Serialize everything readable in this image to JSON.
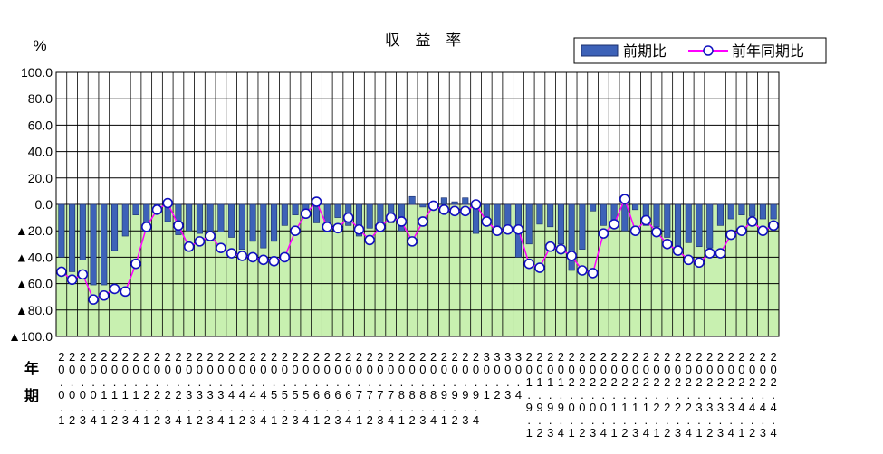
{
  "chart_data": {
    "type": "bar+line",
    "title": "収 益 率",
    "ylabel": "%",
    "xlabel": "年\n期",
    "ylim": [
      -100,
      100
    ],
    "yticks": [
      100.0,
      80.0,
      60.0,
      40.0,
      20.0,
      0.0,
      -20.0,
      -40.0,
      -60.0,
      -80.0,
      -100.0
    ],
    "ytick_labels": [
      "100.0",
      "80.0",
      "60.0",
      "40.0",
      "20.0",
      "0.0",
      "▲20.0",
      "▲40.0",
      "▲60.0",
      "▲80.0",
      "▲100.0"
    ],
    "grid": true,
    "legend_position": "top-right",
    "colors": {
      "bar": "#3d62b8",
      "line": "#ff00ff",
      "marker_edge": "#1010c0",
      "marker_fill": "#ffffff",
      "negative_area": "#c8f0b0"
    },
    "x_labels": [
      [
        "2",
        "0",
        "0",
        "1"
      ],
      [
        "2",
        "0",
        "0",
        "2"
      ],
      [
        "2",
        "0",
        "0",
        "3"
      ],
      [
        "2",
        "0",
        "0",
        "4"
      ],
      [
        "2",
        "0",
        "1",
        "1"
      ],
      [
        "2",
        "0",
        "1",
        "2"
      ],
      [
        "2",
        "0",
        "1",
        "3"
      ],
      [
        "2",
        "0",
        "1",
        "4"
      ],
      [
        "2",
        "0",
        "2",
        "1"
      ],
      [
        "2",
        "0",
        "2",
        "2"
      ],
      [
        "2",
        "0",
        "2",
        "3"
      ],
      [
        "2",
        "0",
        "2",
        "4"
      ],
      [
        "2",
        "0",
        "3",
        "1"
      ],
      [
        "2",
        "0",
        "3",
        "2"
      ],
      [
        "2",
        "0",
        "3",
        "3"
      ],
      [
        "2",
        "0",
        "3",
        "4"
      ],
      [
        "2",
        "0",
        "4",
        "1"
      ],
      [
        "2",
        "0",
        "4",
        "2"
      ],
      [
        "2",
        "0",
        "4",
        "3"
      ],
      [
        "2",
        "0",
        "4",
        "4"
      ],
      [
        "2",
        "0",
        "5",
        "1"
      ],
      [
        "2",
        "0",
        "5",
        "2"
      ],
      [
        "2",
        "0",
        "5",
        "3"
      ],
      [
        "2",
        "0",
        "5",
        "4"
      ],
      [
        "2",
        "0",
        "6",
        "1"
      ],
      [
        "2",
        "0",
        "6",
        "2"
      ],
      [
        "2",
        "0",
        "6",
        "3"
      ],
      [
        "2",
        "0",
        "6",
        "4"
      ],
      [
        "2",
        "0",
        "7",
        "1"
      ],
      [
        "2",
        "0",
        "7",
        "2"
      ],
      [
        "2",
        "0",
        "7",
        "3"
      ],
      [
        "2",
        "0",
        "7",
        "4"
      ],
      [
        "2",
        "0",
        "8",
        "1"
      ],
      [
        "2",
        "0",
        "8",
        "2"
      ],
      [
        "2",
        "0",
        "8",
        "3"
      ],
      [
        "2",
        "0",
        "8",
        "4"
      ],
      [
        "2",
        "0",
        "9",
        "1"
      ],
      [
        "2",
        "0",
        "9",
        "2"
      ],
      [
        "2",
        "0",
        "9",
        "3"
      ],
      [
        "2",
        "0",
        "9",
        "4"
      ],
      [
        "3",
        "0",
        "1"
      ],
      [
        "3",
        "0",
        "2"
      ],
      [
        "3",
        "0",
        "3"
      ],
      [
        "3",
        "0",
        "4"
      ],
      [
        "2",
        "0",
        "1",
        "9",
        "1"
      ],
      [
        "2",
        "0",
        "1",
        "9",
        "2"
      ],
      [
        "2",
        "0",
        "1",
        "9",
        "3"
      ],
      [
        "2",
        "0",
        "1",
        "9",
        "4"
      ],
      [
        "2",
        "0",
        "2",
        "0",
        "1"
      ],
      [
        "2",
        "0",
        "2",
        "0",
        "2"
      ],
      [
        "2",
        "0",
        "2",
        "0",
        "3"
      ],
      [
        "2",
        "0",
        "2",
        "0",
        "4"
      ],
      [
        "2",
        "0",
        "2",
        "1",
        "1"
      ],
      [
        "2",
        "0",
        "2",
        "1",
        "2"
      ],
      [
        "2",
        "0",
        "2",
        "1",
        "3"
      ],
      [
        "2",
        "0",
        "2",
        "1",
        "4"
      ],
      [
        "2",
        "0",
        "2",
        "2",
        "1"
      ],
      [
        "2",
        "0",
        "2",
        "2",
        "2"
      ],
      [
        "2",
        "0",
        "2",
        "2",
        "3"
      ],
      [
        "2",
        "0",
        "2",
        "2",
        "4"
      ],
      [
        "2",
        "0",
        "2",
        "3",
        "1"
      ],
      [
        "2",
        "0",
        "2",
        "3",
        "2"
      ],
      [
        "2",
        "0",
        "2",
        "3",
        "3"
      ],
      [
        "2",
        "0",
        "2",
        "3",
        "4"
      ],
      [
        "2",
        "0",
        "2",
        "4",
        "1"
      ],
      [
        "2",
        "0",
        "2",
        "4",
        "2"
      ],
      [
        "2",
        "0",
        "2",
        "4",
        "3"
      ],
      [
        "2",
        "0",
        "2",
        "4",
        "4"
      ]
    ],
    "series": [
      {
        "name": "前期比",
        "type": "bar",
        "values": [
          -40,
          -51,
          -42,
          -61,
          -61,
          -35,
          -24,
          -8,
          -16,
          -4,
          -13,
          -23,
          -20,
          -22,
          -20,
          -21,
          -25,
          -34,
          -28,
          -33,
          -28,
          -16,
          -8,
          -4,
          -14,
          -14,
          -10,
          -16,
          -24,
          -18,
          -18,
          -14,
          -20,
          6,
          -2,
          -2,
          5,
          2,
          5,
          -22,
          -12,
          -18,
          -20,
          -40,
          -30,
          -15,
          -17,
          -30,
          -50,
          -34,
          -5,
          -16,
          -16,
          -20,
          -4,
          -16,
          -17,
          -25,
          -35,
          -29,
          -32,
          -33,
          -16,
          -11,
          -8,
          -9,
          -11,
          -11
        ],
        "data_label": "前期比"
      },
      {
        "name": "前年同期比",
        "type": "line",
        "values": [
          -51,
          -57,
          -53,
          -72,
          -69,
          -64,
          -66,
          -45,
          -17,
          -4,
          1,
          -16,
          -32,
          -28,
          -24,
          -33,
          -37,
          -39,
          -40,
          -42,
          -43,
          -40,
          -20,
          -7,
          2,
          -17,
          -18,
          -10,
          -19,
          -27,
          -17,
          -10,
          -13,
          -28,
          -13,
          -1,
          -4,
          -5,
          -5,
          0,
          -13,
          -20,
          -19,
          -19,
          -45,
          -48,
          -32,
          -34,
          -39,
          -50,
          -52,
          -22,
          -15,
          4,
          -20,
          -12,
          -21,
          -30,
          -35,
          -42,
          -44,
          -37,
          -37,
          -23,
          -20,
          -13,
          -20,
          -16
        ]
      }
    ]
  }
}
